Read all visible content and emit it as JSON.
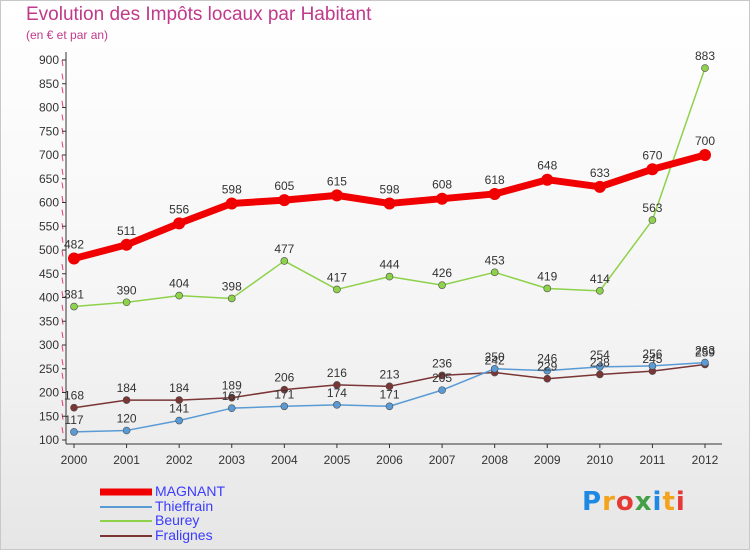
{
  "header": {
    "title": "Evolution des Impôts locaux par Habitant",
    "subtitle": "(en € et par an)"
  },
  "brand": {
    "letters": [
      {
        "char": "P",
        "color": "#1e88e5"
      },
      {
        "char": "r",
        "color": "#f4a31c"
      },
      {
        "char": "o",
        "color": "#e53935"
      },
      {
        "char": "x",
        "color": "#43a047"
      },
      {
        "char": "i",
        "color": "#1e88e5"
      },
      {
        "char": "t",
        "color": "#f4a31c"
      },
      {
        "char": "i",
        "color": "#e53935"
      }
    ]
  },
  "chart_data": {
    "type": "line",
    "title": "Evolution des Impôts locaux par Habitant",
    "subtitle": "(en € et par an)",
    "x": [
      "2000",
      "2001",
      "2002",
      "2003",
      "2004",
      "2005",
      "2006",
      "2007",
      "2008",
      "2009",
      "2010",
      "2011",
      "2012"
    ],
    "ylim": [
      100,
      900
    ],
    "yticks": [
      100,
      150,
      200,
      250,
      300,
      350,
      400,
      450,
      500,
      550,
      600,
      650,
      700,
      750,
      800,
      850,
      900
    ],
    "grid": false,
    "legend_position": "bottom-left",
    "series": [
      {
        "name": "MAGNANT",
        "color": "#f00000",
        "values": [
          482,
          511,
          556,
          598,
          605,
          615,
          598,
          608,
          618,
          648,
          633,
          670,
          700
        ],
        "labels": [
          "482",
          "511",
          "556",
          "598",
          "605",
          "615",
          "598",
          "608",
          "618",
          "648",
          "633",
          "670",
          "700"
        ]
      },
      {
        "name": "Thieffrain",
        "color": "#5a9bd5",
        "values": [
          117,
          120,
          141,
          167,
          171,
          174,
          171,
          205,
          250,
          246,
          254,
          256,
          263
        ],
        "labels": [
          "117",
          "120",
          "141",
          "167",
          "171",
          "174",
          "171",
          "205",
          "250",
          "246",
          "254",
          "256",
          "263"
        ]
      },
      {
        "name": "Beurey",
        "color": "#8ed14a",
        "values": [
          381,
          390,
          404,
          398,
          477,
          417,
          444,
          426,
          453,
          419,
          414,
          563,
          883
        ],
        "labels": [
          "381",
          "390",
          "404",
          "398",
          "477",
          "417",
          "444",
          "426",
          "453",
          "419",
          "414",
          "563",
          "883"
        ]
      },
      {
        "name": "Fralignes",
        "color": "#7a3535",
        "values": [
          168,
          184,
          184,
          189,
          206,
          216,
          213,
          236,
          242,
          229,
          238,
          245,
          259
        ],
        "labels": [
          "168",
          "184",
          "184",
          "189",
          "206",
          "216",
          "213",
          "236",
          "242",
          "229",
          "238",
          "245",
          "259"
        ]
      }
    ]
  }
}
